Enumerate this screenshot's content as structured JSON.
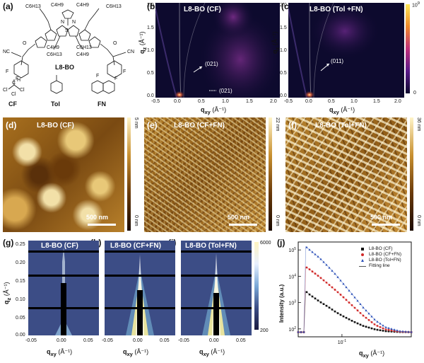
{
  "panel_a": {
    "label": "(a)",
    "molecule_name": "L8-BO",
    "chains": [
      "C6H13",
      "C4H9",
      "C4H9",
      "C6H13",
      "C4H9",
      "C6H13",
      "C6H13",
      "C4H9"
    ],
    "atoms": [
      "NC",
      "CN",
      "F",
      "F",
      "F",
      "F",
      "O",
      "O",
      "S",
      "N",
      "N",
      "Cl",
      "Cl",
      "Cl",
      "H",
      "C",
      "F"
    ],
    "solvents": [
      "CF",
      "Tol",
      "FN"
    ]
  },
  "panel_b": {
    "label": "(b)",
    "title": "L8-BO (CF)",
    "annotations": [
      "(021)",
      "(021)"
    ],
    "xlabel_main": "q",
    "xlabel_sub": "xy",
    "xlabel_unit": "(Å⁻¹)",
    "ylabel_main": "q",
    "ylabel_sub": "z",
    "ylabel_unit": "(Å⁻¹)",
    "xticks": [
      "-0.5",
      "0.0",
      "0.5",
      "1.0",
      "1.5",
      "2.0"
    ],
    "yticks": [
      "2.0",
      "1.5",
      "1.0",
      "0.5",
      "0.0"
    ]
  },
  "panel_c": {
    "label": "(c)",
    "title": "L8-BO (Tol +FN)",
    "annotations": [
      "(011)"
    ],
    "xlabel_main": "q",
    "xlabel_sub": "xy",
    "xlabel_unit": "(Å⁻¹)",
    "ylabel_main": "q",
    "ylabel_sub": "z",
    "ylabel_unit": "(Å⁻¹)",
    "xticks": [
      "-0.5",
      "0.0",
      "0.5",
      "1.0",
      "1.5",
      "2.0"
    ],
    "yticks": [
      "2.0",
      "1.5",
      "1.0",
      "0.5",
      "0.0"
    ],
    "colorbar": {
      "max_base": "10",
      "max_exp": "9",
      "min": "0"
    }
  },
  "panel_d": {
    "label": "(d)",
    "title": "L8-BO (CF)",
    "scalebar": "500 nm",
    "cbar_top": "5 nm",
    "cbar_bottom": "0 nm"
  },
  "panel_e": {
    "label": "(e)",
    "title": "L8-BO (CF+FN)",
    "scalebar": "500 nm",
    "cbar_top": "22 nm",
    "cbar_bottom": "0 nm"
  },
  "panel_f": {
    "label": "(f)",
    "title": "L8-BO (Tol+FN)",
    "scalebar": "500 nm",
    "cbar_top": "36 nm",
    "cbar_bottom": "0 nm"
  },
  "panel_g": {
    "label": "(g)",
    "title": "L8-BO (CF)",
    "ylabel_main": "q",
    "ylabel_sub": "z",
    "ylabel_unit": "(Å⁻¹)",
    "xlabel_main": "q",
    "xlabel_sub": "xy",
    "xlabel_unit": "(Å⁻¹)",
    "yticks": [
      "0.25",
      "0.20",
      "0.15",
      "0.10",
      "0.05",
      "0.00"
    ],
    "xticks": [
      "-0.05",
      "0.00",
      "0.05"
    ]
  },
  "panel_h": {
    "label": "(h)",
    "title": "L8-BO (CF+FN)",
    "xlabel_main": "q",
    "xlabel_sub": "xy",
    "xlabel_unit": "(Å⁻¹)",
    "xticks": [
      "-0.05",
      "0.00",
      "0.05"
    ]
  },
  "panel_i": {
    "label": "(i)",
    "title": "L8-BO (Tol+FN)",
    "xlabel_main": "q",
    "xlabel_sub": "xy",
    "xlabel_unit": "(Å⁻¹)",
    "xticks": [
      "-0.05",
      "0.00",
      "0.05"
    ],
    "colorbar": {
      "max": "6000",
      "min": "200"
    }
  },
  "panel_j": {
    "label": "(j)"
  },
  "colors": {
    "gi_bg": "#0d0a2e",
    "gi_arc": "#7a2d8a",
    "gi_hot": "#ffe3a0",
    "afm_dark": "#4a2a08",
    "afm_mid": "#a8701e",
    "afm_light": "#f2e0a8",
    "saxs_bg": "#3c4d86",
    "saxs_hot": "#fff29a",
    "series_cf": "#111111",
    "series_cffn": "#d12a2a",
    "series_tolfn": "#2a4fb8",
    "fit": "#555555"
  },
  "chart_data": [
    {
      "type": "scatter",
      "xlabel": "qxy (Å⁻¹)",
      "ylabel": "Intensity (a.u.)",
      "xscale": "log",
      "yscale": "log",
      "xlim": [
        0.05,
        0.3
      ],
      "ylim": [
        50,
        200000
      ],
      "xticks": [
        {
          "value": 0.1,
          "base": "10",
          "exp": "-1"
        }
      ],
      "yticks": [
        {
          "value": 100,
          "base": "10",
          "exp": "2"
        },
        {
          "value": 1000,
          "base": "10",
          "exp": "3"
        },
        {
          "value": 10000,
          "base": "10",
          "exp": "4"
        },
        {
          "value": 100000,
          "base": "10",
          "exp": "5"
        }
      ],
      "legend_position": "top-right",
      "series": [
        {
          "name": "L8-BO (CF)",
          "marker": "square",
          "color": "#111111",
          "x": [
            0.055,
            0.06,
            0.07,
            0.08,
            0.09,
            0.1,
            0.12,
            0.14,
            0.17,
            0.2,
            0.25,
            0.3
          ],
          "y": [
            3000,
            2000,
            1100,
            700,
            450,
            320,
            190,
            130,
            95,
            82,
            76,
            75
          ]
        },
        {
          "name": "L8-BO (CF+FN)",
          "marker": "circle",
          "color": "#d12a2a",
          "x": [
            0.055,
            0.06,
            0.07,
            0.08,
            0.09,
            0.1,
            0.12,
            0.14,
            0.17,
            0.2,
            0.25,
            0.3
          ],
          "y": [
            25000,
            18000,
            9500,
            5200,
            3000,
            1800,
            700,
            320,
            140,
            95,
            78,
            75
          ]
        },
        {
          "name": "L8-BO (Tol+FN)",
          "marker": "triangle",
          "color": "#2a4fb8",
          "x": [
            0.055,
            0.06,
            0.07,
            0.08,
            0.09,
            0.1,
            0.12,
            0.14,
            0.17,
            0.2,
            0.25,
            0.3
          ],
          "y": [
            150000,
            100000,
            50000,
            24000,
            12000,
            6000,
            1800,
            650,
            210,
            115,
            82,
            76
          ]
        },
        {
          "name": "Fitting line",
          "marker": "line",
          "color": "#555555",
          "x": [
            0.055,
            0.07,
            0.1,
            0.14,
            0.2,
            0.3
          ],
          "y": [
            150000,
            50000,
            6000,
            650,
            115,
            76
          ]
        }
      ]
    }
  ]
}
